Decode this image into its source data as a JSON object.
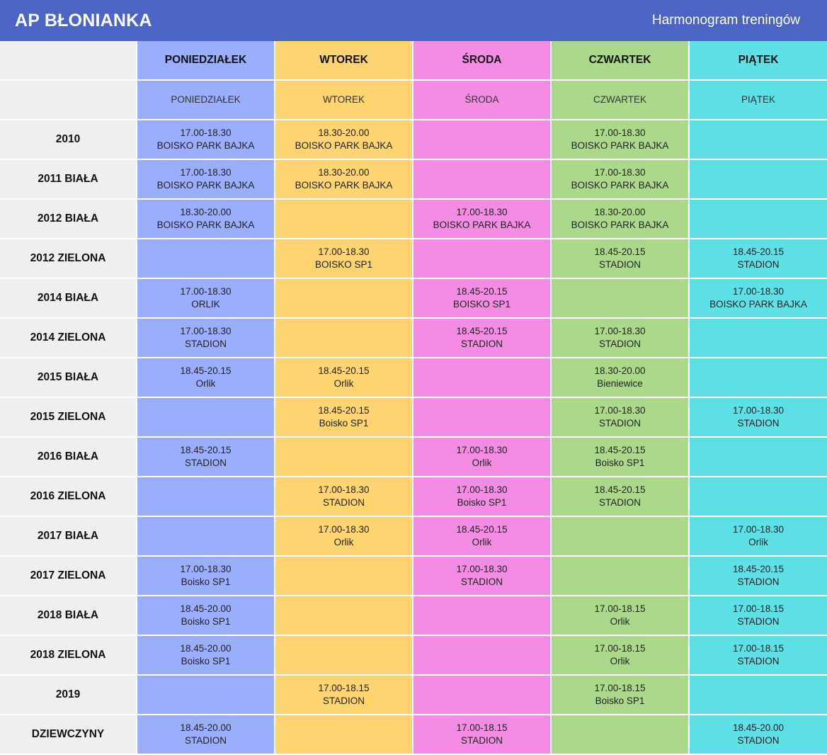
{
  "header": {
    "title": "AP BŁONIANKA",
    "subtitle": "Harmonogram treningów"
  },
  "days": [
    "PONIEDZIAŁEK",
    "WTOREK",
    "ŚRODA",
    "CZWARTEK",
    "PIĄTEK"
  ],
  "subdays": [
    "PONIEDZIAŁEK",
    "WTOREK",
    "ŚRODA",
    "CZWARTEK",
    "PIĄTEK"
  ],
  "colors": {
    "header": "#4c65c4",
    "rowlabel": "#efefef",
    "days": [
      "#9badfd",
      "#fdd46f",
      "#f38de3",
      "#abd88b",
      "#5de1e6"
    ]
  },
  "rows": [
    {
      "group": "2010",
      "cells": [
        {
          "time": "17.00-18.30",
          "place": "BOISKO PARK BAJKA"
        },
        {
          "time": "18.30-20.00",
          "place": "BOISKO PARK BAJKA"
        },
        {
          "time": "",
          "place": ""
        },
        {
          "time": "17.00-18.30",
          "place": "BOISKO PARK BAJKA"
        },
        {
          "time": "",
          "place": ""
        }
      ]
    },
    {
      "group": "2011 BIAŁA",
      "cells": [
        {
          "time": "17.00-18.30",
          "place": "BOISKO PARK BAJKA"
        },
        {
          "time": "18.30-20.00",
          "place": "BOISKO PARK BAJKA"
        },
        {
          "time": "",
          "place": ""
        },
        {
          "time": "17.00-18.30",
          "place": "BOISKO PARK BAJKA"
        },
        {
          "time": "",
          "place": ""
        }
      ]
    },
    {
      "group": "2012 BIAŁA",
      "cells": [
        {
          "time": "18.30-20.00",
          "place": "BOISKO PARK BAJKA"
        },
        {
          "time": "",
          "place": ""
        },
        {
          "time": "17.00-18.30",
          "place": "BOISKO PARK BAJKA"
        },
        {
          "time": "18.30-20.00",
          "place": "BOISKO PARK BAJKA"
        },
        {
          "time": "",
          "place": ""
        }
      ]
    },
    {
      "group": "2012 ZIELONA",
      "cells": [
        {
          "time": "",
          "place": ""
        },
        {
          "time": "17.00-18.30",
          "place": "BOISKO SP1"
        },
        {
          "time": "",
          "place": ""
        },
        {
          "time": "18.45-20.15",
          "place": "STADION"
        },
        {
          "time": "18.45-20.15",
          "place": "STADION"
        }
      ]
    },
    {
      "group": "2014 BIAŁA",
      "cells": [
        {
          "time": "17.00-18.30",
          "place": "ORLIK"
        },
        {
          "time": "",
          "place": ""
        },
        {
          "time": "18.45-20.15",
          "place": "BOISKO SP1"
        },
        {
          "time": "",
          "place": ""
        },
        {
          "time": "17.00-18.30",
          "place": "BOISKO PARK BAJKA"
        }
      ]
    },
    {
      "group": "2014 ZIELONA",
      "cells": [
        {
          "time": "17.00-18.30",
          "place": "STADION"
        },
        {
          "time": "",
          "place": ""
        },
        {
          "time": "18.45-20.15",
          "place": "STADION"
        },
        {
          "time": "17.00-18.30",
          "place": "STADION"
        },
        {
          "time": "",
          "place": ""
        }
      ]
    },
    {
      "group": "2015 BIAŁA",
      "cells": [
        {
          "time": "18.45-20.15",
          "place": "Orlik"
        },
        {
          "time": "18.45-20.15",
          "place": "Orlik"
        },
        {
          "time": "",
          "place": ""
        },
        {
          "time": "18.30-20.00",
          "place": "Bieniewice"
        },
        {
          "time": "",
          "place": ""
        }
      ]
    },
    {
      "group": "2015 ZIELONA",
      "cells": [
        {
          "time": "",
          "place": ""
        },
        {
          "time": "18.45-20.15",
          "place": "Boisko SP1"
        },
        {
          "time": "",
          "place": ""
        },
        {
          "time": "17.00-18.30",
          "place": "STADION"
        },
        {
          "time": "17.00-18.30",
          "place": "STADION"
        }
      ]
    },
    {
      "group": "2016 BIAŁA",
      "cells": [
        {
          "time": "18.45-20.15",
          "place": "STADION"
        },
        {
          "time": "",
          "place": ""
        },
        {
          "time": "17.00-18.30",
          "place": "Orlik"
        },
        {
          "time": "18.45-20.15",
          "place": "Boisko SP1"
        },
        {
          "time": "",
          "place": ""
        }
      ]
    },
    {
      "group": "2016 ZIELONA",
      "cells": [
        {
          "time": "",
          "place": ""
        },
        {
          "time": "17.00-18.30",
          "place": "STADION"
        },
        {
          "time": "17.00-18.30",
          "place": "Boisko SP1"
        },
        {
          "time": "18.45-20.15",
          "place": "STADION"
        },
        {
          "time": "",
          "place": ""
        }
      ]
    },
    {
      "group": "2017 BIAŁA",
      "cells": [
        {
          "time": "",
          "place": ""
        },
        {
          "time": "17.00-18.30",
          "place": "Orlik"
        },
        {
          "time": "18.45-20.15",
          "place": "Orlik"
        },
        {
          "time": "",
          "place": ""
        },
        {
          "time": "17.00-18.30",
          "place": "Orlik"
        }
      ]
    },
    {
      "group": "2017 ZIELONA",
      "cells": [
        {
          "time": "17.00-18.30",
          "place": "Boisko SP1"
        },
        {
          "time": "",
          "place": ""
        },
        {
          "time": "17.00-18.30",
          "place": "STADION"
        },
        {
          "time": "",
          "place": ""
        },
        {
          "time": "18.45-20.15",
          "place": "STADION"
        }
      ]
    },
    {
      "group": "2018 BIAŁA",
      "cells": [
        {
          "time": "18.45-20.00",
          "place": "Boisko SP1"
        },
        {
          "time": "",
          "place": ""
        },
        {
          "time": "",
          "place": ""
        },
        {
          "time": "17.00-18.15",
          "place": "Orlik"
        },
        {
          "time": "17.00-18.15",
          "place": "STADION"
        }
      ]
    },
    {
      "group": "2018 ZIELONA",
      "cells": [
        {
          "time": "18.45-20.00",
          "place": "Boisko SP1"
        },
        {
          "time": "",
          "place": ""
        },
        {
          "time": "",
          "place": ""
        },
        {
          "time": "17.00-18.15",
          "place": "Orlik"
        },
        {
          "time": "17.00-18.15",
          "place": "STADION"
        }
      ]
    },
    {
      "group": "2019",
      "cells": [
        {
          "time": "",
          "place": ""
        },
        {
          "time": "17.00-18.15",
          "place": "STADION"
        },
        {
          "time": "",
          "place": ""
        },
        {
          "time": "17.00-18.15",
          "place": "Boisko SP1"
        },
        {
          "time": "",
          "place": ""
        }
      ]
    },
    {
      "group": "DZIEWCZYNY",
      "cells": [
        {
          "time": "18.45-20.00",
          "place": "STADION"
        },
        {
          "time": "",
          "place": ""
        },
        {
          "time": "17.00-18.15",
          "place": "STADION"
        },
        {
          "time": "",
          "place": ""
        },
        {
          "time": "18.45-20.00",
          "place": "STADION"
        }
      ]
    }
  ]
}
